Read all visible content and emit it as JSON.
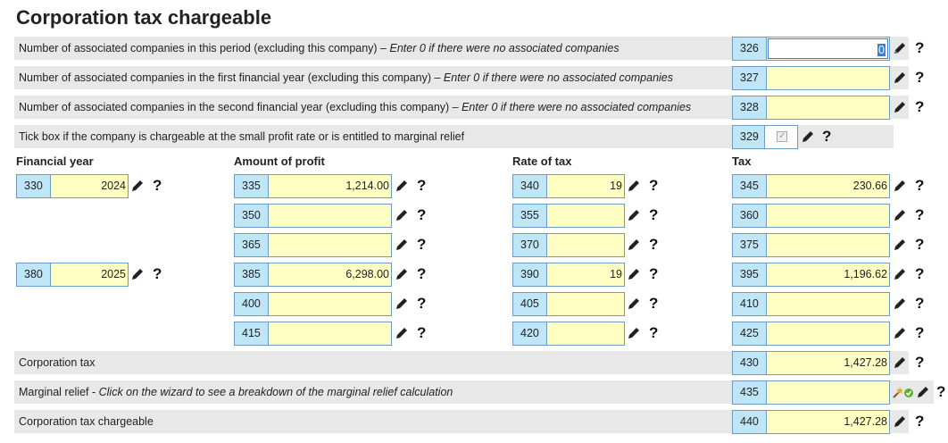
{
  "title": "Corporation tax chargeable",
  "rows": {
    "r326": {
      "text": "Number of associated companies in this period (excluding this company) – ",
      "hint": "Enter 0 if there were no associated companies",
      "box": "326",
      "value": "0"
    },
    "r327": {
      "text": "Number of associated companies in the first financial year (excluding this company) – ",
      "hint": "Enter 0 if there were no associated companies",
      "box": "327",
      "value": ""
    },
    "r328": {
      "text": "Number of associated companies in the second financial year (excluding this company) – ",
      "hint": "Enter 0 if there were no associated companies",
      "box": "328",
      "value": ""
    },
    "r329": {
      "text": "Tick box if the company is chargeable at the small profit rate or is entitled to marginal relief",
      "box": "329",
      "checked": true
    }
  },
  "columns": {
    "year": "Financial year",
    "profit": "Amount of profit",
    "rate": "Rate of tax",
    "tax": "Tax"
  },
  "grid": [
    {
      "year_box": "330",
      "year": "2024",
      "profit_box": "335",
      "profit": "1,214.00",
      "rate_box": "340",
      "rate": "19",
      "tax_box": "345",
      "tax": "230.66"
    },
    {
      "profit_box": "350",
      "profit": "",
      "rate_box": "355",
      "rate": "",
      "tax_box": "360",
      "tax": ""
    },
    {
      "profit_box": "365",
      "profit": "",
      "rate_box": "370",
      "rate": "",
      "tax_box": "375",
      "tax": ""
    },
    {
      "year_box": "380",
      "year": "2025",
      "profit_box": "385",
      "profit": "6,298.00",
      "rate_box": "390",
      "rate": "19",
      "tax_box": "395",
      "tax": "1,196.62"
    },
    {
      "profit_box": "400",
      "profit": "",
      "rate_box": "405",
      "rate": "",
      "tax_box": "410",
      "tax": ""
    },
    {
      "profit_box": "415",
      "profit": "",
      "rate_box": "420",
      "rate": "",
      "tax_box": "425",
      "tax": ""
    }
  ],
  "totals": {
    "corp_tax": {
      "label": "Corporation tax",
      "box": "430",
      "value": "1,427.28"
    },
    "marginal": {
      "label": "Marginal relief - ",
      "hint": "Click on the wizard to see a breakdown of the marginal relief calculation",
      "box": "435",
      "value": ""
    },
    "chargeable": {
      "label": "Corporation tax chargeable",
      "box": "440",
      "value": "1,427.28"
    }
  },
  "help_symbol": "?"
}
